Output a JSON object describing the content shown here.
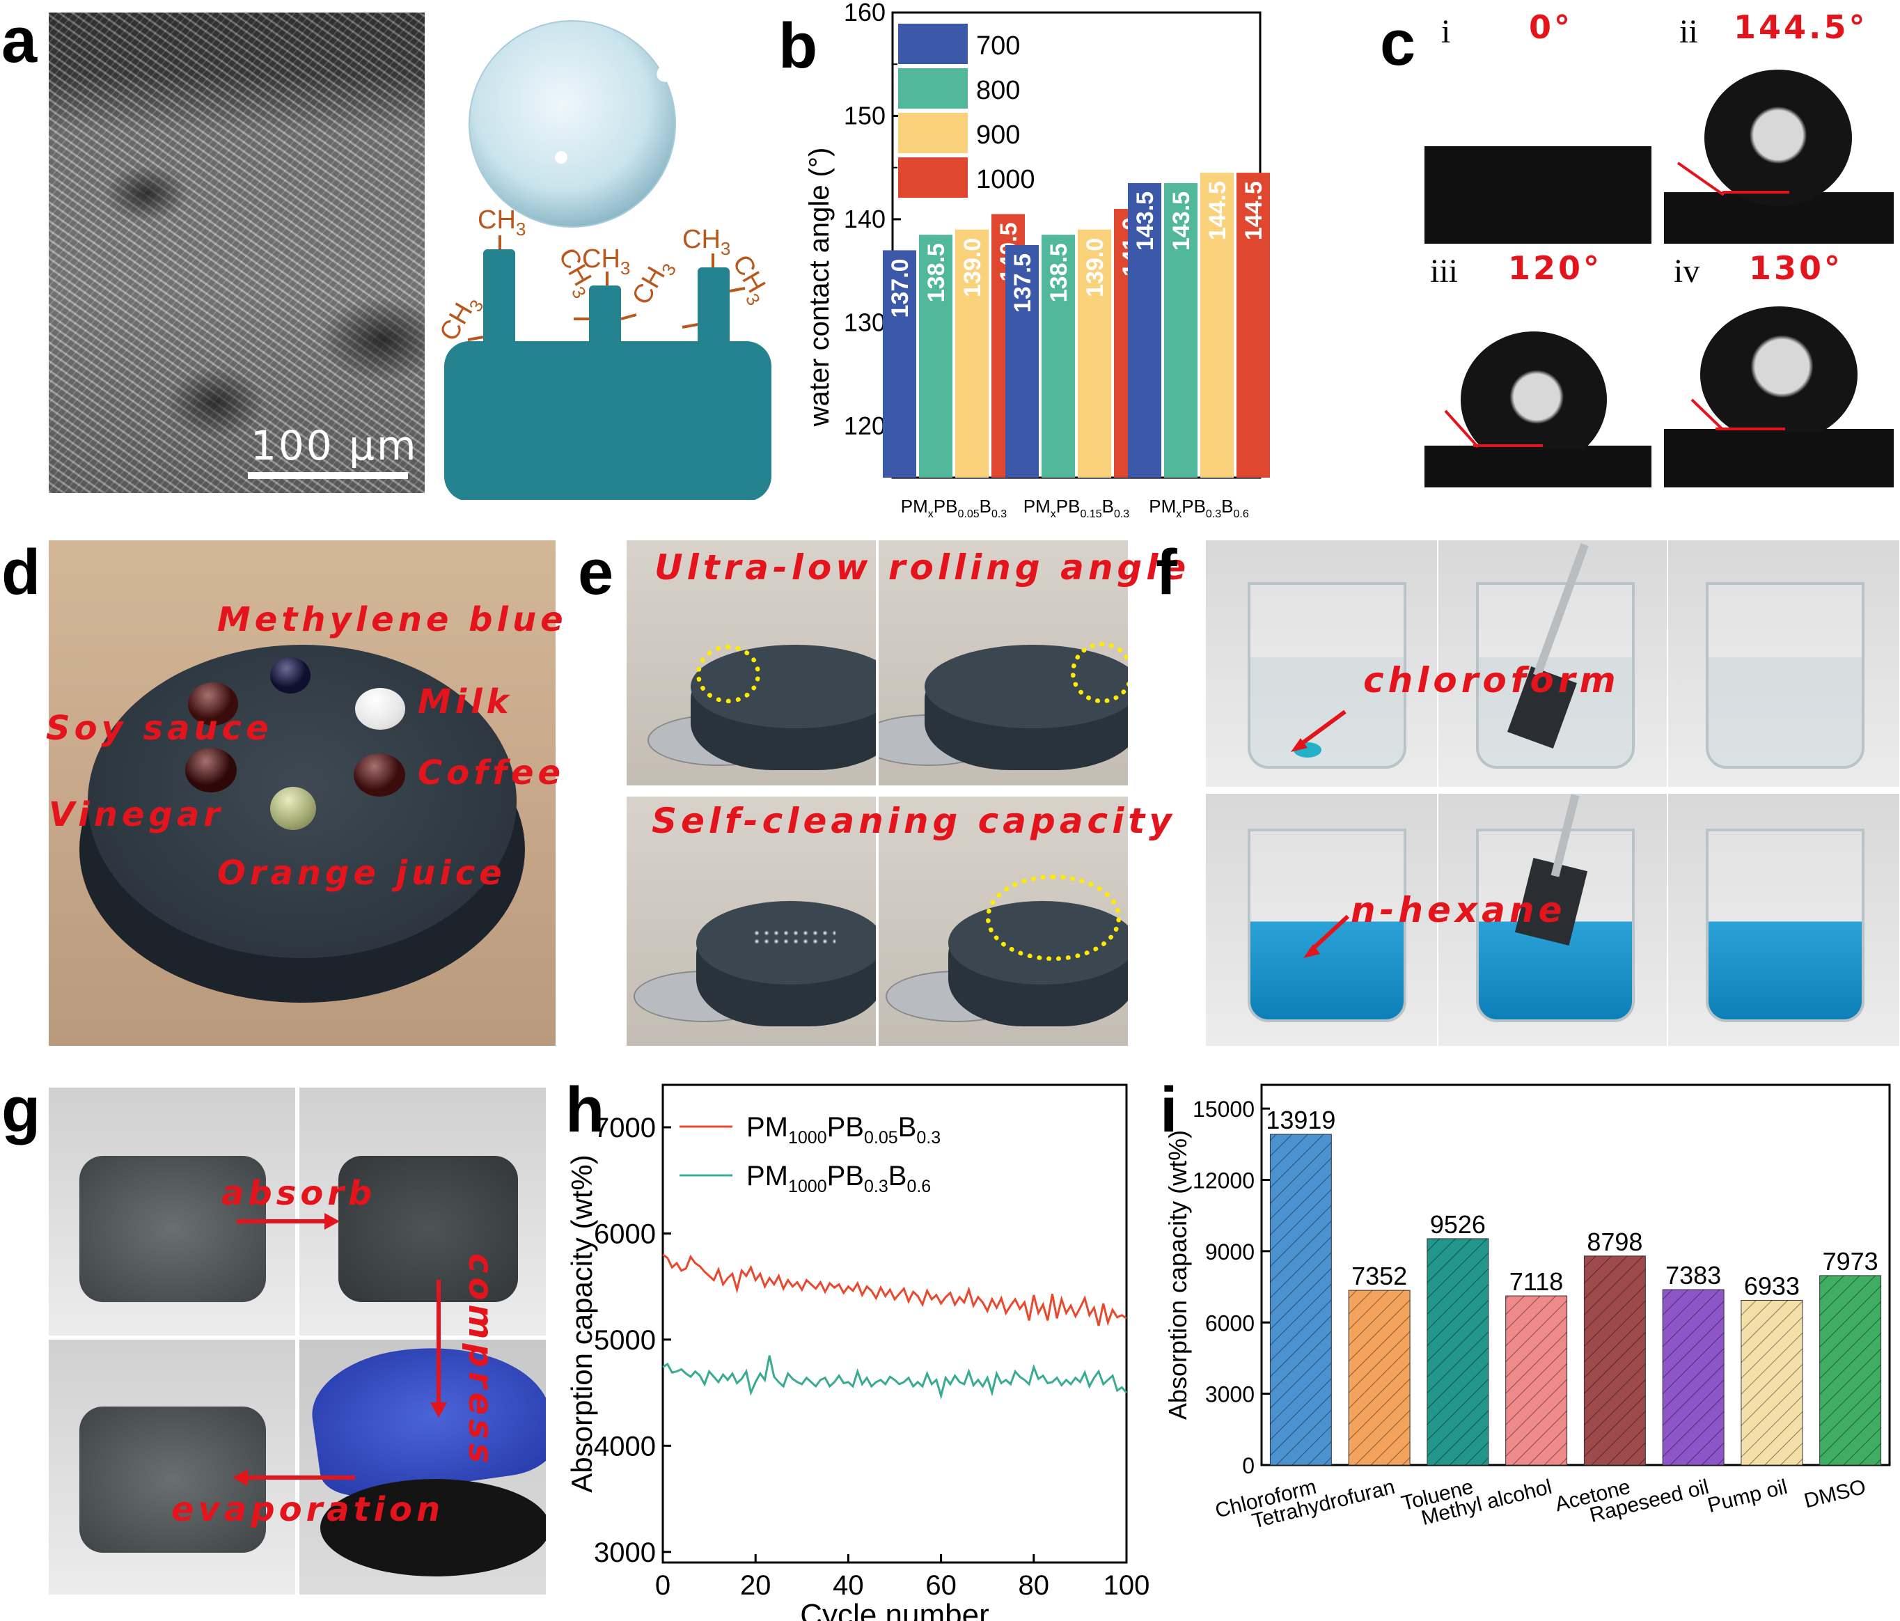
{
  "panels": {
    "a": {
      "label": "a",
      "scalebar": "100 μm",
      "groups": [
        "CH",
        "3"
      ]
    },
    "b": {
      "label": "b"
    },
    "c": {
      "label": "c",
      "images": [
        {
          "roman": "i",
          "angle": "0°"
        },
        {
          "roman": "ii",
          "angle": "144.5°"
        },
        {
          "roman": "iii",
          "angle": "120°"
        },
        {
          "roman": "iv",
          "angle": "130°"
        }
      ]
    },
    "d": {
      "label": "d",
      "liquids": [
        "Methylene blue",
        "Milk",
        "Soy sauce",
        "Coffee",
        "Vinegar",
        "Orange juice"
      ]
    },
    "e": {
      "label": "e",
      "top": "Ultra-low rolling angle",
      "bottom": "Self-cleaning capacity"
    },
    "f": {
      "label": "f",
      "top": "chloroform",
      "bottom": "n-hexane"
    },
    "g": {
      "label": "g",
      "absorb": "absorb",
      "compress": "compress",
      "evaporation": "evaporation"
    },
    "h": {
      "label": "h"
    },
    "i": {
      "label": "i"
    }
  },
  "chart_data": [
    {
      "panel": "b",
      "type": "bar",
      "categories": [
        "PMxPB0.05B0.3",
        "PMxPB0.15B0.3",
        "PMxPB0.3B0.6"
      ],
      "category_parts": [
        [
          "PM",
          "x",
          "PB",
          "0.05",
          "B",
          "0.3"
        ],
        [
          "PM",
          "x",
          "PB",
          "0.15",
          "B",
          "0.3"
        ],
        [
          "PM",
          "x",
          "PB",
          "0.3",
          "B",
          "0.6"
        ]
      ],
      "series": [
        {
          "name": "700",
          "color": "#3c58a8",
          "values": [
            137.0,
            137.5,
            143.5
          ],
          "labels": [
            "137.0",
            "137.5",
            "143.5"
          ]
        },
        {
          "name": "800",
          "color": "#52b89b",
          "values": [
            138.5,
            138.5,
            143.5
          ],
          "labels": [
            "138.5",
            "138.5",
            "143.5"
          ]
        },
        {
          "name": "900",
          "color": "#fad27c",
          "values": [
            139.0,
            139.0,
            144.5
          ],
          "labels": [
            "139.0",
            "139.0",
            "144.5"
          ]
        },
        {
          "name": "1000",
          "color": "#e0472f",
          "values": [
            140.5,
            141.0,
            144.5
          ],
          "labels": [
            "140.5",
            "141.0",
            "144.5"
          ]
        }
      ],
      "ylabel": "water contact angle (°)",
      "ylim": [
        115,
        160
      ],
      "yticks": [
        "120",
        "130",
        "140",
        "150",
        "160"
      ],
      "legend": "top-left"
    },
    {
      "panel": "h",
      "type": "line",
      "xlabel": "Cycle number",
      "ylabel": "Absorption capacity (wt%)",
      "xlim": [
        0,
        100
      ],
      "ylim": [
        2900,
        7400
      ],
      "xticks": [
        "0",
        "20",
        "40",
        "60",
        "80",
        "100"
      ],
      "yticks": [
        "3000",
        "4000",
        "5000",
        "6000",
        "7000"
      ],
      "legend": "top-left",
      "series": [
        {
          "name_parts": [
            "PM",
            "1000",
            "PB",
            "0.05",
            "B",
            "0.3"
          ],
          "color": "#e8492e",
          "values": [
            5800,
            5770,
            5680,
            5720,
            5650,
            5670,
            5780,
            5720,
            5690,
            5640,
            5600,
            5560,
            5660,
            5520,
            5580,
            5620,
            5470,
            5650,
            5600,
            5680,
            5560,
            5620,
            5500,
            5580,
            5520,
            5600,
            5480,
            5560,
            5500,
            5540,
            5470,
            5560,
            5520,
            5480,
            5540,
            5450,
            5530,
            5490,
            5520,
            5440,
            5500,
            5460,
            5530,
            5420,
            5500,
            5460,
            5390,
            5490,
            5410,
            5470,
            5380,
            5430,
            5480,
            5360,
            5450,
            5410,
            5330,
            5460,
            5380,
            5420,
            5340,
            5400,
            5440,
            5330,
            5400,
            5350,
            5470,
            5320,
            5400,
            5350,
            5270,
            5380,
            5300,
            5390,
            5250,
            5320,
            5380,
            5290,
            5350,
            5180,
            5420,
            5250,
            5330,
            5180,
            5430,
            5200,
            5380,
            5250,
            5320,
            5220,
            5300,
            5390,
            5230,
            5300,
            5130,
            5340,
            5160,
            5280,
            5210,
            5230,
            5200
          ]
        },
        {
          "name_parts": [
            "PM",
            "1000",
            "PB",
            "0.3",
            "B",
            "0.6"
          ],
          "color": "#3aab93",
          "values": [
            4740,
            4770,
            4690,
            4700,
            4720,
            4680,
            4650,
            4700,
            4660,
            4580,
            4700,
            4650,
            4600,
            4670,
            4620,
            4680,
            4590,
            4630,
            4700,
            4500,
            4600,
            4680,
            4620,
            4850,
            4650,
            4600,
            4560,
            4680,
            4630,
            4600,
            4580,
            4640,
            4600,
            4560,
            4620,
            4640,
            4560,
            4600,
            4660,
            4590,
            4600,
            4560,
            4700,
            4580,
            4640,
            4560,
            4600,
            4620,
            4580,
            4650,
            4620,
            4580,
            4600,
            4640,
            4560,
            4600,
            4560,
            4680,
            4580,
            4620,
            4470,
            4640,
            4580,
            4660,
            4600,
            4580,
            4700,
            4570,
            4620,
            4560,
            4640,
            4500,
            4680,
            4590,
            4620,
            4580,
            4700,
            4650,
            4620,
            4580,
            4740,
            4630,
            4660,
            4590,
            4600,
            4640,
            4570,
            4620,
            4580,
            4640,
            4600,
            4690,
            4560,
            4640,
            4700,
            4580,
            4620,
            4660,
            4520,
            4550,
            4500
          ]
        }
      ]
    },
    {
      "panel": "i",
      "type": "bar",
      "categories": [
        "Chloroform",
        "Tetrahydrofuran",
        "Toluene",
        "Methyl alcohol",
        "Acetone",
        "Rapeseed oil",
        "Pump oil",
        "DMSO"
      ],
      "values": [
        13919,
        7352,
        9526,
        7118,
        8798,
        7383,
        6933,
        7973
      ],
      "labels": [
        "13919",
        "7352",
        "9526",
        "7118",
        "8798",
        "7383",
        "6933",
        "7973"
      ],
      "colors": [
        "#4c92d0",
        "#f4a35c",
        "#22968a",
        "#ee8a8a",
        "#9e4a4a",
        "#8c55c8",
        "#f5dfa8",
        "#3fae62"
      ],
      "ylabel": "Absorption capacity (wt%)",
      "ylim": [
        0,
        16000
      ],
      "yticks": [
        "0",
        "3000",
        "6000",
        "9000",
        "12000",
        "15000"
      ]
    }
  ]
}
